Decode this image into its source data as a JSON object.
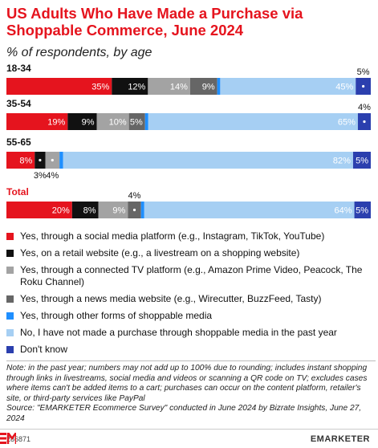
{
  "chart_data": {
    "type": "stacked_bar_horizontal",
    "title": "US Adults Who Have Made a Purchase via Shoppable Commerce, June 2024",
    "subtitle": "% of respondents, by age",
    "categories": [
      "18-34",
      "35-54",
      "55-65",
      "Total"
    ],
    "series": [
      {
        "name": "Yes, through a social media platform (e.g., Instagram, TikTok, YouTube)",
        "color": "#e5141e",
        "values": [
          35,
          19,
          8,
          20
        ],
        "value_labels": [
          "35%",
          "19%",
          "8%",
          "20%"
        ]
      },
      {
        "name": "Yes, on a retail website (e.g., a livestream on a shopping website)",
        "color": "#111111",
        "values": [
          12,
          9,
          3,
          8
        ],
        "value_labels": [
          "12%",
          "9%",
          "3%",
          "8%"
        ]
      },
      {
        "name": "Yes, through a connected TV platform (e.g., Amazon Prime Video, Peacock, The Roku Channel)",
        "color": "#a3a3a3",
        "values": [
          14,
          10,
          4,
          9
        ],
        "value_labels": [
          "14%",
          "10%",
          "4%",
          "9%"
        ]
      },
      {
        "name": "Yes, through a news media website (e.g., Wirecutter, BuzzFeed, Tasty)",
        "color": "#666666",
        "values": [
          9,
          5,
          0,
          4
        ],
        "value_labels": [
          "9%",
          "5%",
          null,
          "4%"
        ]
      },
      {
        "name": "Yes, through other forms of shoppable media",
        "color": "#1f8fff",
        "values": [
          1,
          1,
          1,
          1
        ],
        "value_labels": [
          null,
          null,
          null,
          null
        ]
      },
      {
        "name": "No, I have not made a purchase through shoppable media in the past year",
        "color": "#a6cff3",
        "values": [
          45,
          65,
          82,
          64
        ],
        "value_labels": [
          "45%",
          "65%",
          "82%",
          "64%"
        ]
      },
      {
        "name": "Don't know",
        "color": "#2b3fae",
        "values": [
          5,
          4,
          5,
          5
        ],
        "value_labels": [
          "5%",
          "4%",
          "5%",
          "5%"
        ]
      }
    ],
    "note": "Note: in the past year; numbers may not add up to 100% due to rounding; includes instant shopping through links in livestreams, social media and videos or scanning a QR code on TV; excludes cases where items can't be added items to a cart; purchases can occur on the content platform, retailer's site, or third-party services like PayPal",
    "source": "Source: \"EMARKETER Ecommerce Survey\" conducted in June 2024 by Bizrate Insights, June 27, 2024",
    "chart_id": "286871",
    "brand": "EMARKETER"
  }
}
